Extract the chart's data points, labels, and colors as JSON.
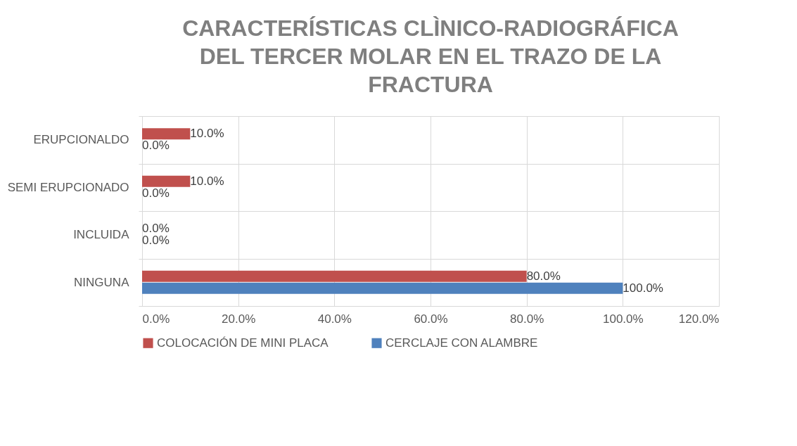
{
  "chart_data": {
    "type": "bar",
    "orientation": "horizontal",
    "title": "CARACTERÍSTICAS CLÌNICO-RADIOGRÁFICA DEL TERCER MOLAR EN EL TRAZO DE LA FRACTURA",
    "categories": [
      "ERUPCIONALDO",
      "SEMI ERUPCIONADO",
      "INCLUIDA",
      "NINGUNA"
    ],
    "series": [
      {
        "name": "COLOCACIÓN DE MINI PLACA",
        "color": "#c0504d",
        "values": [
          10,
          10,
          0,
          80
        ],
        "value_labels": [
          "10.0%",
          "10.0%",
          "0.0%",
          "80.0%"
        ]
      },
      {
        "name": "CERCLAJE CON ALAMBRE",
        "color": "#4f81bd",
        "values": [
          0,
          0,
          0,
          100
        ],
        "value_labels": [
          "0.0%",
          "0.0%",
          "0.0%",
          "100.0%"
        ]
      }
    ],
    "xlim": [
      0,
      120
    ],
    "xticks": [
      {
        "value": 0,
        "label": "0.0%"
      },
      {
        "value": 20,
        "label": "20.0%"
      },
      {
        "value": 40,
        "label": "40.0%"
      },
      {
        "value": 60,
        "label": "60.0%"
      },
      {
        "value": 80,
        "label": "80.0%"
      },
      {
        "value": 100,
        "label": "100.0%"
      },
      {
        "value": 120,
        "label": "120.0%"
      }
    ],
    "grid": true,
    "legend": "bottom"
  }
}
